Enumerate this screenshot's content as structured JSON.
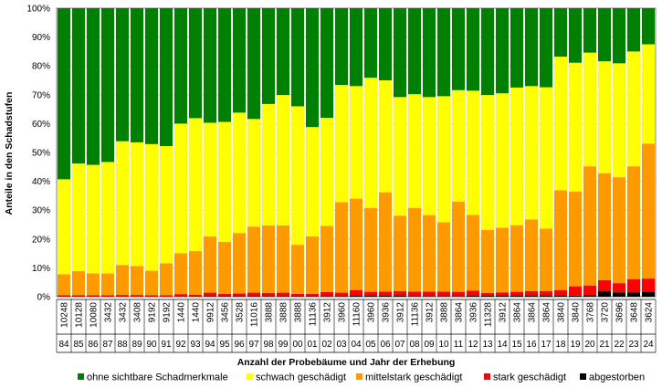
{
  "chart_data": {
    "type": "bar",
    "stacked": true,
    "percent_stacked": true,
    "xlabel": "Anzahl der Probebäume und Jahr der Erhebung",
    "ylabel": "Anteile in den Schadstufen",
    "ylim": [
      0,
      100
    ],
    "yticks": [
      "0%",
      "10%",
      "20%",
      "30%",
      "40%",
      "50%",
      "60%",
      "70%",
      "80%",
      "90%",
      "100%"
    ],
    "grid": true,
    "legend_position": "bottom",
    "categories": [
      "84",
      "85",
      "86",
      "87",
      "88",
      "89",
      "90",
      "91",
      "92",
      "93",
      "94",
      "95",
      "96",
      "97",
      "98",
      "99",
      "00",
      "01",
      "02",
      "03",
      "04",
      "05",
      "06",
      "07",
      "08",
      "09",
      "10",
      "11",
      "12",
      "13",
      "14",
      "15",
      "16",
      "17",
      "18",
      "19",
      "20",
      "21",
      "22",
      "23",
      "24"
    ],
    "sample_sizes": [
      "10248",
      "10128",
      "10080",
      "3432",
      "3432",
      "3408",
      "9192",
      "9192",
      "1440",
      "1440",
      "9912",
      "3456",
      "3528",
      "11016",
      "3888",
      "3888",
      "3888",
      "11136",
      "3912",
      "3960",
      "11160",
      "3960",
      "3936",
      "3912",
      "11136",
      "3912",
      "3888",
      "3864",
      "3936",
      "11328",
      "3912",
      "3864",
      "3864",
      "3864",
      "3840",
      "3840",
      "3768",
      "3720",
      "3696",
      "3648",
      "3624"
    ],
    "series": [
      {
        "name": "abgestorben",
        "color": "#000000",
        "values": [
          0.1,
          0.1,
          0.1,
          0.1,
          0.1,
          0.1,
          0.1,
          0.1,
          0.1,
          0.1,
          0.2,
          0.2,
          0.2,
          0.2,
          0.2,
          0.2,
          0.2,
          0.2,
          0.2,
          0.2,
          0.3,
          0.3,
          0.3,
          0.3,
          0.2,
          0.2,
          0.2,
          0.2,
          0.3,
          0.3,
          0.3,
          0.3,
          0.3,
          0.3,
          0.3,
          0.4,
          0.5,
          2.0,
          1.5,
          1.5,
          1.7
        ]
      },
      {
        "name": "stark geschädigt",
        "color": "#ff0000",
        "values": [
          0.4,
          0.4,
          0.4,
          0.4,
          0.5,
          0.5,
          0.4,
          0.4,
          0.8,
          0.6,
          1.2,
          0.8,
          0.9,
          1.2,
          1.1,
          1.2,
          0.8,
          0.8,
          1.4,
          1.2,
          2.0,
          1.4,
          1.5,
          1.6,
          1.6,
          1.6,
          1.6,
          1.5,
          1.8,
          1.0,
          1.2,
          1.4,
          1.6,
          1.6,
          2.0,
          3.2,
          3.4,
          3.7,
          3.2,
          4.6,
          4.6
        ]
      },
      {
        "name": "mittelstark geschädigt",
        "color": "#ff9900",
        "values": [
          7.3,
          8.4,
          7.6,
          7.6,
          10.4,
          10.1,
          8.5,
          11.1,
          14.2,
          15.1,
          19.5,
          18.0,
          21.0,
          22.9,
          23.4,
          23.3,
          17.0,
          19.9,
          23.0,
          31.4,
          31.7,
          29.1,
          34.4,
          26.2,
          29.0,
          26.5,
          24.0,
          31.3,
          26.3,
          21.8,
          22.4,
          23.1,
          24.9,
          21.7,
          34.6,
          32.9,
          41.3,
          37.1,
          36.7,
          39.1,
          46.8
        ]
      },
      {
        "name": "schwach geschädigt",
        "color": "#ffff00",
        "values": [
          32.9,
          37.3,
          37.6,
          38.6,
          42.9,
          42.8,
          43.9,
          40.6,
          44.9,
          46.1,
          39.4,
          41.6,
          41.7,
          37.3,
          42.1,
          45.2,
          48.0,
          37.9,
          37.4,
          40.6,
          39.0,
          45.1,
          38.8,
          41.1,
          39.4,
          40.9,
          43.7,
          38.6,
          43.0,
          46.8,
          46.6,
          47.7,
          46.2,
          49.0,
          46.3,
          44.6,
          39.4,
          38.8,
          39.5,
          39.8,
          34.4
        ]
      },
      {
        "name": "ohne sichtbare Schadmerkmale",
        "color": "#008000",
        "values": [
          59.3,
          53.8,
          54.3,
          53.3,
          46.1,
          46.5,
          47.1,
          47.8,
          40.0,
          38.1,
          39.7,
          39.4,
          36.2,
          38.4,
          33.2,
          30.1,
          34.0,
          41.2,
          38.0,
          26.6,
          27.0,
          24.1,
          25.0,
          30.8,
          29.8,
          30.8,
          30.5,
          28.4,
          28.6,
          30.1,
          29.5,
          27.5,
          27.0,
          27.4,
          16.8,
          18.9,
          15.4,
          18.4,
          19.1,
          15.0,
          12.5
        ]
      }
    ],
    "legend": [
      {
        "label": "ohne sichtbare Schadmerkmale",
        "color": "#008000"
      },
      {
        "label": "schwach geschädigt",
        "color": "#ffff00"
      },
      {
        "label": "mittelstark geschädigt",
        "color": "#ff9900"
      },
      {
        "label": "stark geschädigt",
        "color": "#ff0000"
      },
      {
        "label": "abgestorben",
        "color": "#000000"
      }
    ]
  }
}
